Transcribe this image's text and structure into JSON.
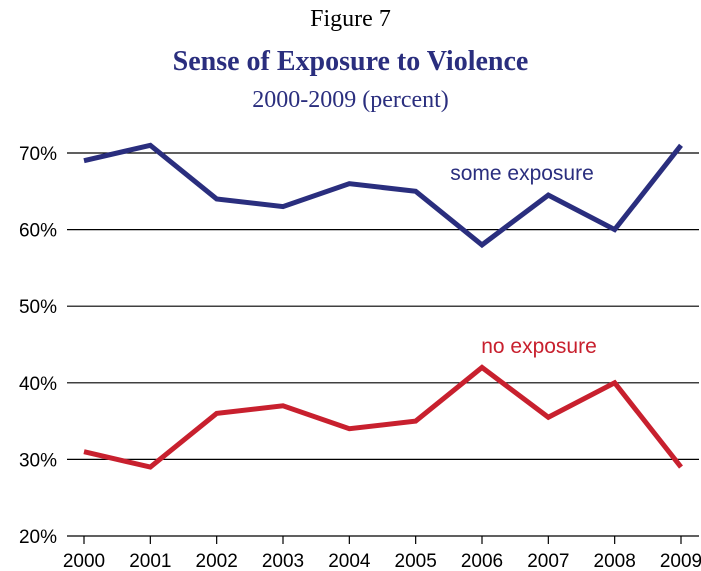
{
  "figure_label": "Figure 7",
  "chart_data": {
    "type": "line",
    "title": "Sense of Exposure to Violence",
    "subtitle": "2000-2009 (percent)",
    "x": [
      "2000",
      "2001",
      "2002",
      "2003",
      "2004",
      "2005",
      "2006",
      "2007",
      "2008",
      "2009"
    ],
    "ylim": [
      20,
      70
    ],
    "yticks": [
      "70%",
      "60%",
      "50%",
      "40%",
      "30%",
      "20%"
    ],
    "ytick_values": [
      70,
      60,
      50,
      40,
      30,
      20
    ],
    "grid": true,
    "series": [
      {
        "name": "some exposure",
        "color": "#2a2e7e",
        "values": [
          69,
          71,
          64,
          63,
          66,
          65,
          58,
          64.5,
          60,
          71
        ]
      },
      {
        "name": "no exposure",
        "color": "#c8202e",
        "values": [
          31,
          29,
          36,
          37,
          34,
          35,
          42,
          35.5,
          40,
          29
        ]
      }
    ]
  }
}
